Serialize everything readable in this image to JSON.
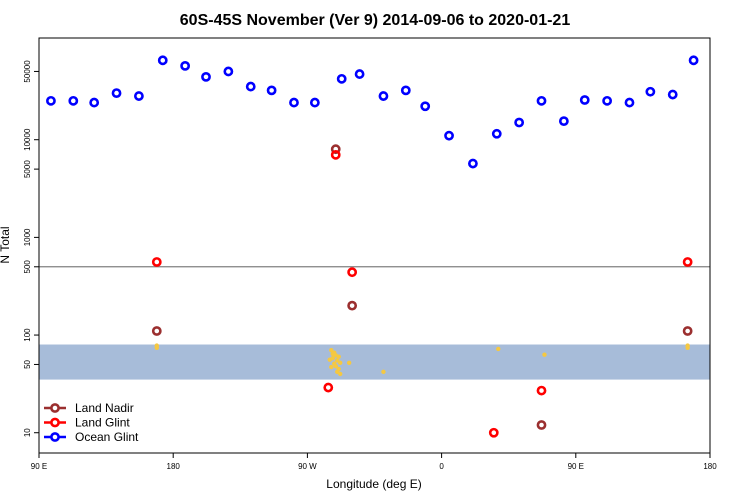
{
  "chart_data": {
    "type": "scatter",
    "title": "60S-45S November (Ver 9)   2014-09-06 to 2020-01-21",
    "xlabel": "Longitude (deg E)",
    "ylabel": "N Total",
    "x_axis": {
      "range_deg_east": [
        90,
        450
      ],
      "ticks": [
        {
          "value": 90,
          "label": "90 E"
        },
        {
          "value": 180,
          "label": "180"
        },
        {
          "value": 270,
          "label": "90 W"
        },
        {
          "value": 360,
          "label": "0"
        },
        {
          "value": 450,
          "label": "90 E"
        },
        {
          "value": 540,
          "label": "180"
        }
      ],
      "plot_range": [
        90,
        540
      ]
    },
    "y_axis": {
      "scale": "log",
      "range": [
        6.2,
        110000
      ],
      "ticks": [
        {
          "value": 10,
          "label": "10"
        },
        {
          "value": 50,
          "label": "50"
        },
        {
          "value": 100,
          "label": "100"
        },
        {
          "value": 500,
          "label": "500"
        },
        {
          "value": 1000,
          "label": "1000"
        },
        {
          "value": 5000,
          "label": "5000"
        },
        {
          "value": 10000,
          "label": "10000"
        },
        {
          "value": 50000,
          "label": "50000"
        }
      ]
    },
    "reference_line": {
      "y": 500,
      "color": "#808080"
    },
    "land_band": {
      "y_range": [
        35,
        80
      ],
      "color": "#a7bcd9"
    },
    "series": [
      {
        "name": "Land Nadir",
        "color": "#9b2f2f",
        "points": [
          {
            "x": 169,
            "y": 110
          },
          {
            "x": 289,
            "y": 8000
          },
          {
            "x": 300,
            "y": 200
          },
          {
            "x": 427,
            "y": 12
          },
          {
            "x": 525,
            "y": 110
          }
        ]
      },
      {
        "name": "Land Glint",
        "color": "#ff0000",
        "points": [
          {
            "x": 169,
            "y": 560
          },
          {
            "x": 289,
            "y": 7000
          },
          {
            "x": 284,
            "y": 29
          },
          {
            "x": 300,
            "y": 440
          },
          {
            "x": 395,
            "y": 10
          },
          {
            "x": 427,
            "y": 27
          },
          {
            "x": 525,
            "y": 560
          }
        ]
      },
      {
        "name": "Ocean Glint",
        "color": "#0000ff",
        "points": [
          {
            "x": 98,
            "y": 25000
          },
          {
            "x": 113,
            "y": 25000
          },
          {
            "x": 127,
            "y": 24000
          },
          {
            "x": 142,
            "y": 30000
          },
          {
            "x": 157,
            "y": 28000
          },
          {
            "x": 173,
            "y": 65000
          },
          {
            "x": 188,
            "y": 57000
          },
          {
            "x": 202,
            "y": 44000
          },
          {
            "x": 217,
            "y": 50000
          },
          {
            "x": 232,
            "y": 35000
          },
          {
            "x": 246,
            "y": 32000
          },
          {
            "x": 261,
            "y": 24000
          },
          {
            "x": 275,
            "y": 24000
          },
          {
            "x": 293,
            "y": 42000
          },
          {
            "x": 305,
            "y": 47000
          },
          {
            "x": 321,
            "y": 28000
          },
          {
            "x": 336,
            "y": 32000
          },
          {
            "x": 349,
            "y": 22000
          },
          {
            "x": 365,
            "y": 11000
          },
          {
            "x": 381,
            "y": 5700
          },
          {
            "x": 397,
            "y": 11500
          },
          {
            "x": 412,
            "y": 15000
          },
          {
            "x": 427,
            "y": 25000
          },
          {
            "x": 442,
            "y": 15500
          },
          {
            "x": 456,
            "y": 25500
          },
          {
            "x": 471,
            "y": 25000
          },
          {
            "x": 486,
            "y": 24000
          },
          {
            "x": 500,
            "y": 31000
          },
          {
            "x": 515,
            "y": 29000
          },
          {
            "x": 529,
            "y": 65000
          }
        ]
      }
    ],
    "land_marks": [
      {
        "x": 169,
        "y": 78
      },
      {
        "x": 169,
        "y": 74
      },
      {
        "x": 286,
        "y": 70
      },
      {
        "x": 288,
        "y": 66
      },
      {
        "x": 289,
        "y": 62
      },
      {
        "x": 287,
        "y": 58
      },
      {
        "x": 290,
        "y": 55
      },
      {
        "x": 288,
        "y": 51
      },
      {
        "x": 289,
        "y": 48
      },
      {
        "x": 291,
        "y": 45
      },
      {
        "x": 290,
        "y": 42
      },
      {
        "x": 292,
        "y": 40
      },
      {
        "x": 287,
        "y": 64
      },
      {
        "x": 291,
        "y": 60
      },
      {
        "x": 285,
        "y": 56
      },
      {
        "x": 292,
        "y": 52
      },
      {
        "x": 286,
        "y": 47
      },
      {
        "x": 298,
        "y": 52
      },
      {
        "x": 321,
        "y": 42
      },
      {
        "x": 398,
        "y": 72
      },
      {
        "x": 429,
        "y": 63
      },
      {
        "x": 525,
        "y": 78
      },
      {
        "x": 525,
        "y": 74
      }
    ],
    "legend": {
      "position": "bottom-left",
      "entries": [
        "Land Nadir",
        "Land Glint",
        "Ocean Glint"
      ]
    },
    "grid": false
  }
}
